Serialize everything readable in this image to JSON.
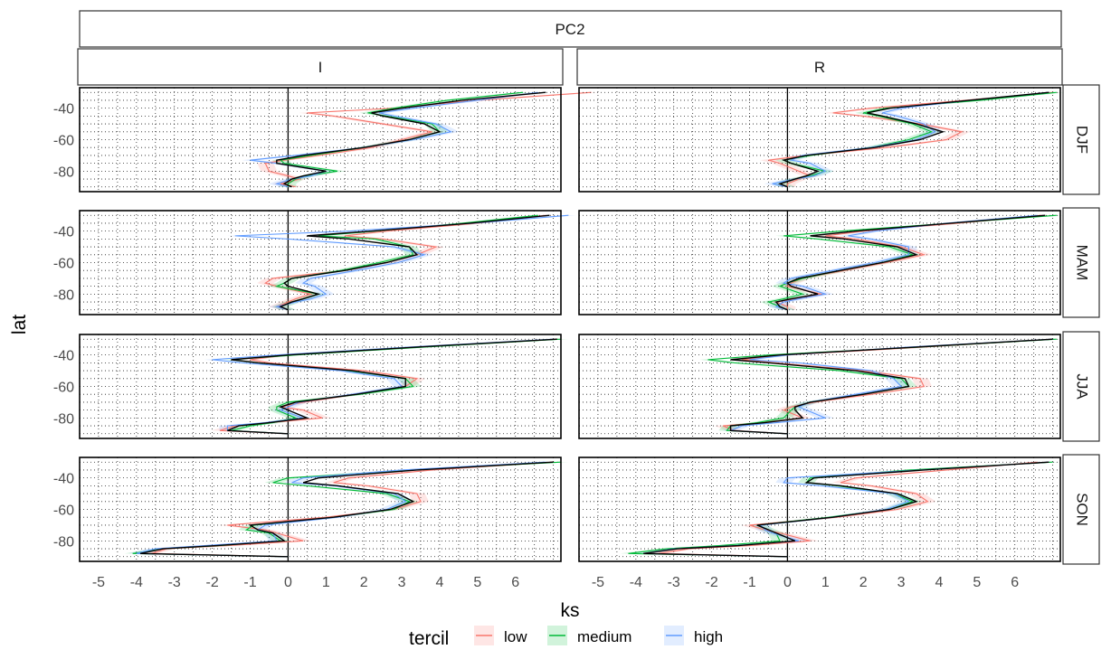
{
  "chart_data": {
    "type": "line",
    "title": "",
    "top_strip": "PC2",
    "columns": [
      "I",
      "R"
    ],
    "rows": [
      "DJF",
      "MAM",
      "JJA",
      "SON"
    ],
    "xlabel": "ks",
    "ylabel": "lat",
    "xlim": [
      -5.5,
      7.2
    ],
    "ylim": [
      -93,
      -27
    ],
    "x_ticks": [
      -5,
      -4,
      -3,
      -2,
      -1,
      0,
      1,
      2,
      3,
      4,
      5,
      6
    ],
    "x_tick_labels": [
      "-5",
      "-4",
      "-3",
      "-2",
      "-1",
      "0",
      "1",
      "2",
      "3",
      "4",
      "5",
      "6"
    ],
    "y_ticks": [
      -40,
      -60,
      -80
    ],
    "y_tick_labels": [
      "-40",
      "-60",
      "-80"
    ],
    "grid": true,
    "vline_at": 0,
    "lat": [
      -30,
      -35,
      -40,
      -43,
      -45,
      -50,
      -55,
      -60,
      -65,
      -70,
      -73,
      -75,
      -80,
      -83,
      -85,
      -88,
      -90
    ],
    "legend": {
      "title": "tercil",
      "position": "bottom",
      "entries": [
        {
          "name": "low",
          "color": "#F8766D"
        },
        {
          "name": "medium",
          "color": "#00BA38"
        },
        {
          "name": "high",
          "color": "#619CFF"
        }
      ]
    },
    "all_color": "#000000",
    "panels": [
      {
        "row": "DJF",
        "col": "I",
        "series": [
          {
            "name": "low",
            "values": [
              8.0,
              5.0,
              2.8,
              0.5,
              1.2,
              2.5,
              3.8,
              3.0,
              2.2,
              0.8,
              -0.1,
              -0.6,
              -0.5,
              0.0,
              0.3,
              -0.2,
              0.2
            ]
          },
          {
            "name": "medium",
            "values": [
              6.2,
              4.2,
              2.8,
              2.1,
              2.6,
              3.8,
              4.0,
              3.2,
              2.0,
              0.6,
              -0.2,
              -0.1,
              1.3,
              0.5,
              0.2,
              0.0,
              0.0
            ]
          },
          {
            "name": "high",
            "values": [
              6.6,
              5.0,
              3.3,
              2.4,
              2.8,
              3.9,
              4.3,
              3.3,
              2.0,
              0.2,
              -1.0,
              -0.3,
              1.0,
              0.6,
              0.1,
              -0.3,
              0.0
            ]
          },
          {
            "name": "all",
            "values": [
              6.8,
              4.6,
              3.0,
              2.2,
              2.5,
              3.6,
              4.0,
              3.2,
              2.0,
              0.4,
              -0.3,
              -0.3,
              1.0,
              0.4,
              0.1,
              -0.1,
              0.1
            ]
          }
        ]
      },
      {
        "row": "DJF",
        "col": "R",
        "series": [
          {
            "name": "low",
            "values": [
              7.0,
              4.7,
              2.2,
              1.2,
              2.0,
              3.5,
              4.6,
              4.2,
              2.6,
              0.5,
              -0.5,
              -0.2,
              0.3,
              0.6,
              0.3,
              0.0,
              0.0
            ]
          },
          {
            "name": "medium",
            "values": [
              7.1,
              5.1,
              2.6,
              2.0,
              2.4,
              3.3,
              3.8,
              3.2,
              2.2,
              0.6,
              -0.1,
              0.1,
              1.0,
              0.6,
              0.2,
              -0.2,
              0.0
            ]
          },
          {
            "name": "high",
            "values": [
              6.9,
              4.8,
              3.0,
              2.5,
              2.9,
              3.6,
              3.9,
              3.4,
              2.2,
              0.4,
              0.1,
              0.6,
              1.0,
              0.7,
              0.2,
              -0.4,
              0.0
            ]
          },
          {
            "name": "all",
            "values": [
              6.9,
              4.8,
              2.7,
              2.1,
              2.5,
              3.4,
              4.1,
              3.5,
              2.3,
              0.5,
              -0.1,
              0.1,
              0.8,
              0.5,
              0.2,
              -0.2,
              0.0
            ]
          }
        ]
      },
      {
        "row": "MAM",
        "col": "I",
        "series": [
          {
            "name": "low",
            "values": [
              6.8,
              5.0,
              2.6,
              1.5,
              2.5,
              3.9,
              3.4,
              2.6,
              1.5,
              -0.4,
              -0.6,
              -0.3,
              0.6,
              0.2,
              0.0,
              -0.3,
              0.0
            ]
          },
          {
            "name": "medium",
            "values": [
              6.6,
              4.6,
              2.3,
              0.8,
              2.3,
              3.2,
              3.3,
              2.4,
              1.4,
              0.1,
              -0.1,
              -0.3,
              0.8,
              0.4,
              0.1,
              -0.2,
              0.0
            ]
          },
          {
            "name": "high",
            "values": [
              7.4,
              4.9,
              1.6,
              -1.4,
              0.0,
              2.8,
              3.6,
              2.9,
              1.8,
              0.6,
              0.4,
              0.7,
              1.0,
              0.6,
              0.2,
              -0.3,
              0.0
            ]
          },
          {
            "name": "all",
            "values": [
              6.9,
              4.8,
              2.2,
              0.5,
              1.6,
              3.2,
              3.4,
              2.6,
              1.5,
              0.1,
              -0.1,
              0.0,
              0.8,
              0.4,
              0.1,
              -0.2,
              0.0
            ]
          }
        ]
      },
      {
        "row": "MAM",
        "col": "R",
        "series": [
          {
            "name": "low",
            "values": [
              6.7,
              4.5,
              2.0,
              1.0,
              1.8,
              3.0,
              3.6,
              2.6,
              1.5,
              0.4,
              0.1,
              0.0,
              0.9,
              0.2,
              -0.3,
              0.0,
              0.0
            ]
          },
          {
            "name": "medium",
            "values": [
              7.1,
              4.3,
              1.4,
              -0.1,
              0.8,
              2.7,
              3.3,
              2.5,
              1.4,
              0.4,
              0.0,
              -0.2,
              0.4,
              -0.1,
              -0.5,
              -0.2,
              0.0
            ]
          },
          {
            "name": "high",
            "values": [
              6.6,
              4.2,
              2.3,
              1.6,
              2.2,
              3.2,
              3.2,
              2.3,
              1.2,
              0.1,
              -0.1,
              0.4,
              1.0,
              0.3,
              -0.1,
              -0.3,
              0.0
            ]
          },
          {
            "name": "all",
            "values": [
              6.8,
              4.3,
              1.8,
              0.6,
              1.5,
              2.9,
              3.4,
              2.5,
              1.4,
              0.3,
              0.0,
              0.1,
              0.8,
              0.1,
              -0.3,
              -0.2,
              0.0
            ]
          }
        ]
      },
      {
        "row": "JJA",
        "col": "I",
        "series": [
          {
            "name": "low",
            "values": [
              7.1,
              3.5,
              0.0,
              -1.0,
              -0.5,
              2.0,
              3.4,
              3.1,
              1.8,
              0.4,
              -0.2,
              0.4,
              0.9,
              -0.5,
              -1.4,
              -1.8,
              0.0
            ]
          },
          {
            "name": "medium",
            "values": [
              7.2,
              3.6,
              0.2,
              -1.5,
              -0.8,
              1.6,
              3.1,
              3.3,
              1.9,
              0.0,
              -0.3,
              -0.3,
              0.2,
              -0.4,
              -1.0,
              -1.5,
              0.0
            ]
          },
          {
            "name": "high",
            "values": [
              7.0,
              3.2,
              -0.3,
              -2.0,
              -1.2,
              1.4,
              2.8,
              3.0,
              1.7,
              0.3,
              0.0,
              -0.2,
              0.4,
              -0.6,
              -1.6,
              -1.6,
              0.0
            ]
          },
          {
            "name": "all",
            "values": [
              7.1,
              3.4,
              0.0,
              -1.5,
              -0.8,
              1.7,
              3.1,
              3.1,
              1.8,
              0.2,
              -0.2,
              0.0,
              0.5,
              -0.5,
              -1.3,
              -1.6,
              0.0
            ]
          }
        ]
      },
      {
        "row": "JJA",
        "col": "R",
        "series": [
          {
            "name": "low",
            "values": [
              7.0,
              3.6,
              0.0,
              -1.2,
              -0.3,
              2.0,
              3.5,
              3.6,
              2.2,
              0.7,
              0.1,
              -0.1,
              0.4,
              -0.7,
              -1.7,
              -1.4,
              0.0
            ]
          },
          {
            "name": "medium",
            "values": [
              7.1,
              3.5,
              -0.5,
              -2.1,
              -1.4,
              1.4,
              3.0,
              3.2,
              2.0,
              0.6,
              0.2,
              0.1,
              -0.1,
              -0.8,
              -1.5,
              -1.6,
              0.0
            ]
          },
          {
            "name": "high",
            "values": [
              7.0,
              3.2,
              0.0,
              -1.0,
              0.3,
              2.2,
              2.8,
              3.0,
              1.8,
              0.6,
              0.3,
              0.5,
              1.0,
              -0.3,
              -1.2,
              -1.5,
              0.0
            ]
          },
          {
            "name": "all",
            "values": [
              7.0,
              3.4,
              -0.2,
              -1.5,
              -0.5,
              1.8,
              3.1,
              3.2,
              2.0,
              0.6,
              0.2,
              0.2,
              0.4,
              -0.6,
              -1.5,
              -1.5,
              0.0
            ]
          }
        ]
      },
      {
        "row": "SON",
        "col": "I",
        "series": [
          {
            "name": "low",
            "values": [
              7.0,
              3.8,
              1.6,
              1.2,
              2.1,
              3.4,
              3.5,
              2.8,
              1.0,
              -1.6,
              -0.6,
              -0.3,
              0.4,
              -1.6,
              -3.2,
              -3.6,
              0.0
            ]
          },
          {
            "name": "medium",
            "values": [
              7.2,
              3.3,
              0.0,
              -0.4,
              0.5,
              2.6,
              3.2,
              2.8,
              1.2,
              -0.9,
              -1.1,
              -0.5,
              -0.2,
              -1.8,
              -3.3,
              -4.1,
              0.0
            ]
          },
          {
            "name": "high",
            "values": [
              6.8,
              3.0,
              0.4,
              0.1,
              1.2,
              2.8,
              3.1,
              2.6,
              1.3,
              -0.6,
              -0.8,
              -0.4,
              -0.3,
              -2.2,
              -3.5,
              -4.0,
              0.0
            ]
          },
          {
            "name": "all",
            "values": [
              7.0,
              3.4,
              0.8,
              0.4,
              1.3,
              2.9,
              3.3,
              2.7,
              1.2,
              -1.0,
              -0.8,
              -0.4,
              -0.1,
              -1.9,
              -3.3,
              -3.9,
              0.0
            ]
          }
        ]
      },
      {
        "row": "SON",
        "col": "R",
        "series": [
          {
            "name": "low",
            "values": [
              6.6,
              4.2,
              1.8,
              1.4,
              2.2,
              3.4,
              3.7,
              2.9,
              1.3,
              -1.0,
              -0.6,
              -0.2,
              0.6,
              -1.0,
              -2.6,
              -3.4,
              0.0
            ]
          },
          {
            "name": "medium",
            "values": [
              7.0,
              3.2,
              0.6,
              0.5,
              1.3,
              2.8,
              3.3,
              2.7,
              1.1,
              -0.8,
              -0.5,
              -0.3,
              -0.2,
              -1.8,
              -3.2,
              -4.2,
              0.0
            ]
          },
          {
            "name": "high",
            "values": [
              6.9,
              3.5,
              0.0,
              -0.1,
              0.9,
              2.8,
              3.2,
              2.6,
              1.2,
              -0.7,
              -0.6,
              -0.4,
              0.3,
              -1.4,
              -3.0,
              -3.8,
              0.0
            ]
          },
          {
            "name": "all",
            "values": [
              6.9,
              3.6,
              0.7,
              0.5,
              1.4,
              2.9,
              3.4,
              2.7,
              1.2,
              -0.8,
              -0.5,
              -0.3,
              0.2,
              -1.3,
              -2.9,
              -3.8,
              0.0
            ]
          }
        ]
      }
    ]
  }
}
